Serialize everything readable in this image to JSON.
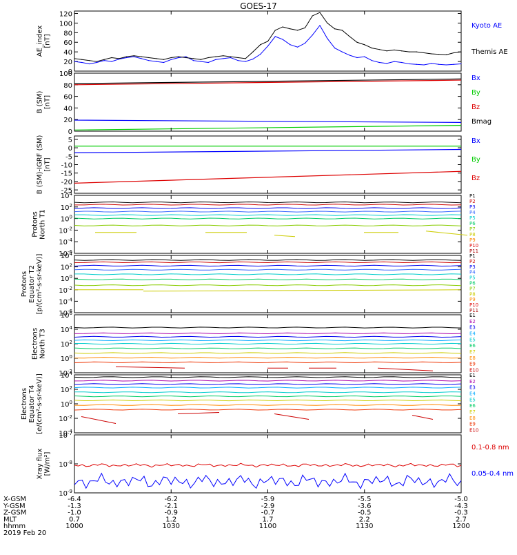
{
  "title": "GOES-17",
  "chart_data": [
    {
      "type": "line",
      "ylabel": [
        "AE_index",
        "[nT]"
      ],
      "yticks": [
        "120",
        "100",
        "80",
        "60",
        "40",
        "20",
        "0"
      ],
      "ylim": [
        0,
        125
      ],
      "series": [
        {
          "name": "Kyoto AE",
          "color": "#0000ff",
          "values": [
            20,
            18,
            15,
            18,
            22,
            20,
            25,
            28,
            30,
            26,
            22,
            20,
            18,
            24,
            28,
            30,
            22,
            20,
            18,
            24,
            26,
            28,
            22,
            20,
            25,
            35,
            52,
            72,
            66,
            55,
            50,
            58,
            75,
            95,
            68,
            48,
            40,
            33,
            28,
            30,
            22,
            18,
            16,
            20,
            18,
            15,
            14,
            13,
            16,
            14,
            13,
            14,
            15
          ]
        },
        {
          "name": "Themis AE",
          "color": "#000000",
          "values": [
            26,
            24,
            22,
            20,
            24,
            28,
            26,
            30,
            32,
            30,
            28,
            26,
            24,
            28,
            30,
            28,
            26,
            24,
            28,
            30,
            32,
            30,
            28,
            26,
            40,
            55,
            62,
            85,
            92,
            88,
            85,
            90,
            115,
            122,
            100,
            88,
            85,
            72,
            60,
            55,
            48,
            45,
            42,
            44,
            42,
            40,
            40,
            38,
            36,
            35,
            34,
            38,
            40
          ]
        }
      ]
    },
    {
      "type": "line",
      "ylabel": [
        "B (SM)",
        "[nT]"
      ],
      "yticks": [
        "100",
        "80",
        "60",
        "40",
        "20",
        "0"
      ],
      "ylim": [
        0,
        100
      ],
      "series": [
        {
          "name": "Bx",
          "color": "#0000ff",
          "start": 19,
          "end": 15
        },
        {
          "name": "By",
          "color": "#00cc00",
          "start": 2,
          "end": 10
        },
        {
          "name": "Bz",
          "color": "#dd0000",
          "start": 80,
          "end": 88
        },
        {
          "name": "Bmag",
          "color": "#000000",
          "start": 82,
          "end": 90
        }
      ]
    },
    {
      "type": "line",
      "ylabel": [
        "B (SM)-IGRF (SM)",
        "[nT]"
      ],
      "yticks": [
        "5",
        "0",
        "-5",
        "-10",
        "-15",
        "-20",
        "-25"
      ],
      "ylim": [
        -27,
        7
      ],
      "series": [
        {
          "name": "Bx",
          "color": "#0000ff",
          "start": -3,
          "end": -1
        },
        {
          "name": "By",
          "color": "#00cc00",
          "start": 1,
          "end": 1
        },
        {
          "name": "Bz",
          "color": "#dd0000",
          "start": -21,
          "end": -14
        }
      ]
    },
    {
      "type": "line",
      "ylabel": [
        "Protons",
        "North T1"
      ],
      "yticks": [
        "10^4",
        "10^2",
        "10^0",
        "10^-2",
        "10^-4",
        "10^-6"
      ],
      "legend": [
        "P1",
        "P2",
        "P3",
        "P4",
        "P5",
        "P6",
        "P7",
        "P8",
        "P9",
        "P10",
        "P11"
      ]
    },
    {
      "type": "line",
      "ylabel": [
        "Protons",
        "Equator T2",
        "[p/(cm^2-s-sr-keV)]"
      ],
      "yticks": [
        "10^4",
        "10^2",
        "10^0",
        "10^-2",
        "10^-4",
        "10^-6"
      ],
      "legend": [
        "P1",
        "P2",
        "P3",
        "P4",
        "P5",
        "P6",
        "P7",
        "P8",
        "P9",
        "P10",
        "P11"
      ]
    },
    {
      "type": "line",
      "ylabel": [
        "Electrons",
        "North T3"
      ],
      "yticks": [
        "10^6",
        "10^4",
        "10^2",
        "10^0",
        "10^-2"
      ],
      "legend": [
        "E1",
        "E2",
        "E3",
        "E4",
        "E5",
        "E6",
        "E7",
        "E8",
        "E9",
        "E10"
      ]
    },
    {
      "type": "line",
      "ylabel": [
        "Electrons",
        "Equator T4",
        "[e/(cm^2-s-sr-keV)]"
      ],
      "yticks": [
        "10^4",
        "10^2",
        "10^0",
        "10^-2",
        "10^-4"
      ],
      "legend": [
        "E1",
        "E2",
        "E3",
        "E4",
        "E5",
        "E6",
        "E7",
        "E8",
        "E9",
        "E10"
      ]
    },
    {
      "type": "line",
      "ylabel": [
        "Xray flux",
        "[W/m^2]"
      ],
      "yticks": [
        "10^-7",
        "10^-8",
        "10^-9"
      ],
      "series": [
        {
          "name": "0.1-0.8 nm",
          "color": "#dd0000",
          "level": 9e-09
        },
        {
          "name": "0.05-0.4 nm",
          "color": "#0000ff",
          "level": 2.5e-09
        }
      ]
    }
  ],
  "x_axis": {
    "rows": [
      {
        "label": "X-GSM",
        "values": [
          "-6.4",
          "-6.2",
          "-5.9",
          "-5.5",
          "-5.0"
        ]
      },
      {
        "label": "Y-GSM",
        "values": [
          "-1.3",
          "-2.1",
          "-2.9",
          "-3.6",
          "-4.3"
        ]
      },
      {
        "label": "Z-GSM",
        "values": [
          "-1.0",
          "-0.9",
          "-0.7",
          "-0.5",
          "-0.3"
        ]
      },
      {
        "label": "MLT",
        "values": [
          "0.7",
          "1.2",
          "1.7",
          "2.2",
          "2.7"
        ]
      },
      {
        "label": "hhmm",
        "values": [
          "1000",
          "1030",
          "1100",
          "1130",
          "1200"
        ]
      }
    ],
    "date": "2019 Feb 20"
  }
}
